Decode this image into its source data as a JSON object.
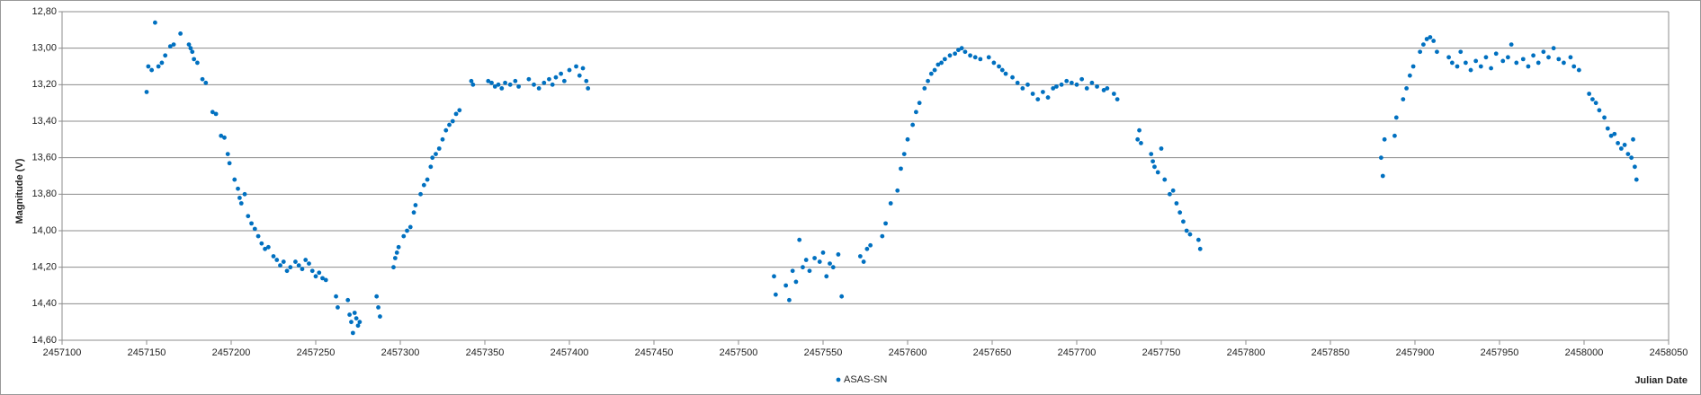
{
  "chart_data": {
    "type": "scatter",
    "xlabel": "Julian Date",
    "ylabel": "Magnitude (V)",
    "x": [
      2457150,
      2457151,
      2457153,
      2457155,
      2457157,
      2457159,
      2457161,
      2457164,
      2457166,
      2457170,
      2457175,
      2457176,
      2457177,
      2457178,
      2457180,
      2457183,
      2457185,
      2457189,
      2457191,
      2457194,
      2457196,
      2457198,
      2457199,
      2457202,
      2457204,
      2457205,
      2457206,
      2457208,
      2457210,
      2457212,
      2457214,
      2457216,
      2457218,
      2457220,
      2457222,
      2457225,
      2457227,
      2457229,
      2457231,
      2457233,
      2457235,
      2457238,
      2457240,
      2457242,
      2457244,
      2457246,
      2457248,
      2457250,
      2457252,
      2457254,
      2457256,
      2457262,
      2457263,
      2457269,
      2457270,
      2457271,
      2457272,
      2457273,
      2457274,
      2457275,
      2457276,
      2457286,
      2457287,
      2457288,
      2457296,
      2457297,
      2457298,
      2457299,
      2457302,
      2457304,
      2457306,
      2457308,
      2457309,
      2457312,
      2457314,
      2457316,
      2457318,
      2457319,
      2457321,
      2457323,
      2457325,
      2457327,
      2457329,
      2457331,
      2457333,
      2457335,
      2457342,
      2457343,
      2457352,
      2457354,
      2457356,
      2457358,
      2457360,
      2457362,
      2457365,
      2457368,
      2457370,
      2457376,
      2457379,
      2457382,
      2457385,
      2457388,
      2457390,
      2457392,
      2457395,
      2457397,
      2457400,
      2457404,
      2457406,
      2457408,
      2457410,
      2457411,
      2457521,
      2457522,
      2457528,
      2457530,
      2457532,
      2457534,
      2457536,
      2457538,
      2457540,
      2457542,
      2457545,
      2457548,
      2457550,
      2457552,
      2457554,
      2457556,
      2457559,
      2457561,
      2457572,
      2457574,
      2457576,
      2457578,
      2457585,
      2457587,
      2457590,
      2457594,
      2457596,
      2457598,
      2457600,
      2457603,
      2457605,
      2457607,
      2457610,
      2457612,
      2457614,
      2457616,
      2457618,
      2457620,
      2457622,
      2457625,
      2457628,
      2457630,
      2457632,
      2457634,
      2457637,
      2457640,
      2457643,
      2457648,
      2457651,
      2457654,
      2457656,
      2457658,
      2457662,
      2457665,
      2457668,
      2457671,
      2457674,
      2457677,
      2457680,
      2457683,
      2457686,
      2457688,
      2457691,
      2457694,
      2457697,
      2457700,
      2457703,
      2457706,
      2457709,
      2457712,
      2457716,
      2457718,
      2457722,
      2457724,
      2457736,
      2457737,
      2457738,
      2457744,
      2457745,
      2457746,
      2457748,
      2457750,
      2457752,
      2457755,
      2457757,
      2457759,
      2457761,
      2457763,
      2457765,
      2457767,
      2457772,
      2457773,
      2457880,
      2457881,
      2457882,
      2457888,
      2457889,
      2457893,
      2457895,
      2457897,
      2457899,
      2457903,
      2457905,
      2457907,
      2457909,
      2457911,
      2457913,
      2457920,
      2457922,
      2457925,
      2457927,
      2457930,
      2457933,
      2457936,
      2457939,
      2457942,
      2457945,
      2457948,
      2457952,
      2457955,
      2457957,
      2457960,
      2457964,
      2457967,
      2457970,
      2457973,
      2457976,
      2457979,
      2457982,
      2457985,
      2457988,
      2457992,
      2457994,
      2457997,
      2458003,
      2458005,
      2458007,
      2458009,
      2458012,
      2458014,
      2458016,
      2458018,
      2458020,
      2458022,
      2458024,
      2458026,
      2458028,
      2458029,
      2458030,
      2458031
    ],
    "series": [
      {
        "name": "ASAS-SN",
        "color": "#0070c0",
        "values": [
          13.24,
          13.1,
          13.12,
          12.86,
          13.1,
          13.08,
          13.04,
          12.99,
          12.98,
          12.92,
          12.98,
          13.0,
          13.02,
          13.06,
          13.08,
          13.17,
          13.19,
          13.35,
          13.36,
          13.48,
          13.49,
          13.58,
          13.63,
          13.72,
          13.77,
          13.82,
          13.85,
          13.8,
          13.92,
          13.96,
          13.99,
          14.03,
          14.07,
          14.1,
          14.09,
          14.14,
          14.16,
          14.19,
          14.17,
          14.22,
          14.2,
          14.17,
          14.19,
          14.21,
          14.16,
          14.18,
          14.22,
          14.25,
          14.23,
          14.26,
          14.27,
          14.36,
          14.42,
          14.38,
          14.46,
          14.5,
          14.56,
          14.45,
          14.48,
          14.52,
          14.5,
          14.36,
          14.42,
          14.47,
          14.2,
          14.15,
          14.12,
          14.09,
          14.03,
          14.0,
          13.98,
          13.9,
          13.86,
          13.8,
          13.75,
          13.72,
          13.65,
          13.6,
          13.58,
          13.55,
          13.5,
          13.45,
          13.42,
          13.4,
          13.36,
          13.34,
          13.18,
          13.2,
          13.18,
          13.19,
          13.21,
          13.2,
          13.22,
          13.19,
          13.2,
          13.18,
          13.21,
          13.17,
          13.2,
          13.22,
          13.19,
          13.17,
          13.2,
          13.16,
          13.14,
          13.18,
          13.12,
          13.1,
          13.15,
          13.11,
          13.18,
          13.22,
          14.25,
          14.35,
          14.3,
          14.38,
          14.22,
          14.28,
          14.05,
          14.2,
          14.16,
          14.22,
          14.15,
          14.17,
          14.12,
          14.25,
          14.18,
          14.2,
          14.13,
          14.36,
          14.14,
          14.17,
          14.1,
          14.08,
          14.03,
          13.96,
          13.85,
          13.78,
          13.66,
          13.58,
          13.5,
          13.42,
          13.35,
          13.3,
          13.22,
          13.18,
          13.14,
          13.12,
          13.09,
          13.08,
          13.06,
          13.04,
          13.03,
          13.01,
          13.0,
          13.02,
          13.04,
          13.05,
          13.06,
          13.05,
          13.08,
          13.1,
          13.12,
          13.14,
          13.16,
          13.19,
          13.22,
          13.2,
          13.25,
          13.28,
          13.24,
          13.27,
          13.22,
          13.21,
          13.2,
          13.18,
          13.19,
          13.2,
          13.17,
          13.22,
          13.19,
          13.21,
          13.23,
          13.22,
          13.25,
          13.28,
          13.5,
          13.45,
          13.52,
          13.58,
          13.62,
          13.65,
          13.68,
          13.55,
          13.72,
          13.8,
          13.78,
          13.85,
          13.9,
          13.95,
          14.0,
          14.02,
          14.05,
          14.1,
          13.6,
          13.7,
          13.5,
          13.48,
          13.38,
          13.28,
          13.22,
          13.15,
          13.1,
          13.02,
          12.98,
          12.95,
          12.94,
          12.96,
          13.02,
          13.05,
          13.08,
          13.1,
          13.02,
          13.08,
          13.12,
          13.07,
          13.1,
          13.05,
          13.11,
          13.03,
          13.07,
          13.05,
          12.98,
          13.08,
          13.06,
          13.1,
          13.04,
          13.08,
          13.02,
          13.05,
          13.0,
          13.06,
          13.08,
          13.05,
          13.1,
          13.12,
          13.25,
          13.28,
          13.3,
          13.34,
          13.38,
          13.44,
          13.48,
          13.47,
          13.52,
          13.55,
          13.53,
          13.58,
          13.6,
          13.5,
          13.65,
          13.72
        ]
      }
    ],
    "xlim": [
      2457100,
      2458050
    ],
    "xticks": [
      2457100,
      2457150,
      2457200,
      2457250,
      2457300,
      2457350,
      2457400,
      2457450,
      2457500,
      2457550,
      2457600,
      2457650,
      2457700,
      2457750,
      2457800,
      2457850,
      2457900,
      2457950,
      2458000,
      2458050
    ],
    "ylim": [
      14.6,
      12.8
    ],
    "yticks": [
      {
        "value": 12.8,
        "label": "12,80"
      },
      {
        "value": 13.0,
        "label": "13,00"
      },
      {
        "value": 13.2,
        "label": "13,20"
      },
      {
        "value": 13.4,
        "label": "13,40"
      },
      {
        "value": 13.6,
        "label": "13,60"
      },
      {
        "value": 13.8,
        "label": "13,80"
      },
      {
        "value": 14.0,
        "label": "14,00"
      },
      {
        "value": 14.2,
        "label": "14,20"
      },
      {
        "value": 14.4,
        "label": "14,40"
      },
      {
        "value": 14.6,
        "label": "14,60"
      }
    ],
    "grid": true,
    "legend": "bottom"
  }
}
